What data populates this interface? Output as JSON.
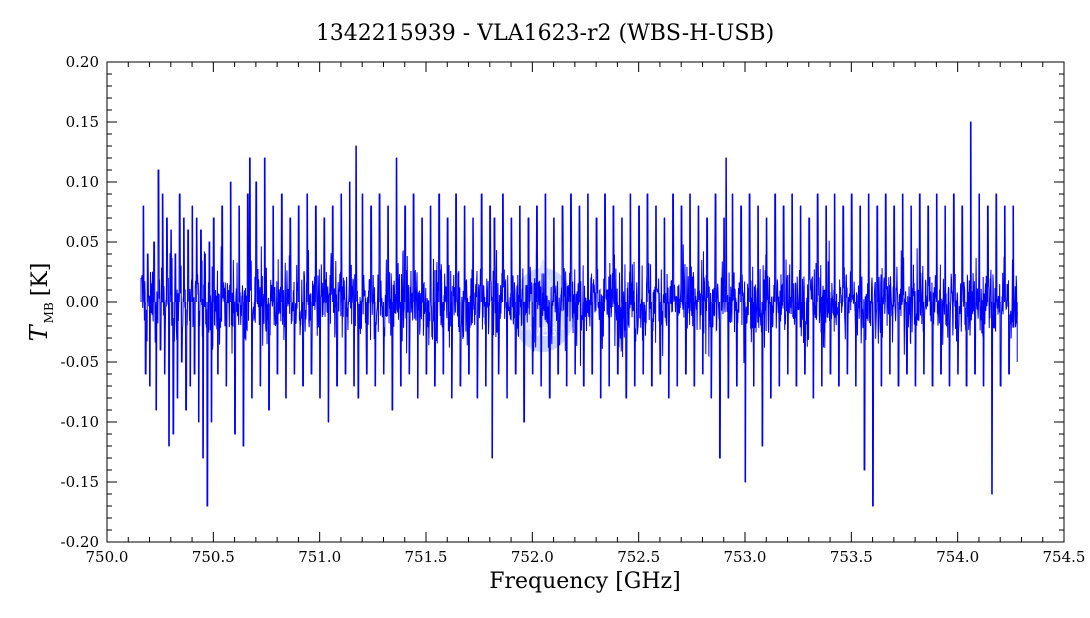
{
  "colors": {
    "series": "#0000ff",
    "axis": "#000000",
    "background": "#ffffff"
  },
  "chart_data": {
    "type": "line",
    "title": "1342215939 - VLA1623-r2 (WBS-H-USB)",
    "xlabel": "Frequency [GHz]",
    "ylabel": {
      "symbol": "T",
      "subscript": "MB",
      "unit": "[K]"
    },
    "xlim": [
      750.0,
      754.5
    ],
    "ylim": [
      -0.2,
      0.2
    ],
    "x_ticks": [
      "750.0",
      "750.5",
      "751.0",
      "751.5",
      "752.0",
      "752.5",
      "753.0",
      "753.5",
      "754.0",
      "754.5"
    ],
    "y_ticks": [
      "0.20",
      "0.15",
      "0.10",
      "0.05",
      "0.00",
      "-0.05",
      "-0.10",
      "-0.15",
      "-0.20"
    ],
    "grid": false,
    "watermark": "WBS",
    "series": [
      {
        "x_range": [
          750.16,
          754.28
        ],
        "points": [
          [
            750.16,
            0.02
          ],
          [
            750.17,
            0.08
          ],
          [
            750.18,
            -0.06
          ],
          [
            750.19,
            0.04
          ],
          [
            750.2,
            -0.07
          ],
          [
            750.22,
            0.05
          ],
          [
            750.23,
            -0.09
          ],
          [
            750.24,
            0.11
          ],
          [
            750.25,
            -0.04
          ],
          [
            750.26,
            0.09
          ],
          [
            750.27,
            -0.06
          ],
          [
            750.28,
            0.07
          ],
          [
            750.29,
            -0.12
          ],
          [
            750.3,
            0.06
          ],
          [
            750.31,
            -0.11
          ],
          [
            750.32,
            0.04
          ],
          [
            750.33,
            -0.08
          ],
          [
            750.34,
            0.09
          ],
          [
            750.35,
            -0.05
          ],
          [
            750.36,
            0.07
          ],
          [
            750.37,
            -0.09
          ],
          [
            750.38,
            0.06
          ],
          [
            750.39,
            -0.07
          ],
          [
            750.4,
            0.08
          ],
          [
            750.41,
            -0.06
          ],
          [
            750.42,
            0.07
          ],
          [
            750.43,
            -0.1
          ],
          [
            750.44,
            0.06
          ],
          [
            750.45,
            -0.13
          ],
          [
            750.46,
            0.04
          ],
          [
            750.47,
            -0.17
          ],
          [
            750.48,
            0.05
          ],
          [
            750.49,
            -0.1
          ],
          [
            750.5,
            0.07
          ],
          [
            750.52,
            -0.06
          ],
          [
            750.54,
            0.08
          ],
          [
            750.56,
            -0.07
          ],
          [
            750.58,
            0.1
          ],
          [
            750.6,
            -0.11
          ],
          [
            750.62,
            0.08
          ],
          [
            750.64,
            -0.12
          ],
          [
            750.66,
            0.09
          ],
          [
            750.67,
            0.12
          ],
          [
            750.68,
            -0.08
          ],
          [
            750.7,
            0.1
          ],
          [
            750.72,
            -0.07
          ],
          [
            750.74,
            0.12
          ],
          [
            750.76,
            -0.09
          ],
          [
            750.78,
            0.08
          ],
          [
            750.8,
            -0.06
          ],
          [
            750.82,
            0.09
          ],
          [
            750.84,
            -0.08
          ],
          [
            750.86,
            0.07
          ],
          [
            750.88,
            -0.06
          ],
          [
            750.9,
            0.08
          ],
          [
            750.92,
            -0.07
          ],
          [
            750.94,
            0.09
          ],
          [
            750.96,
            -0.06
          ],
          [
            750.98,
            0.08
          ],
          [
            751.0,
            -0.08
          ],
          [
            751.02,
            0.07
          ],
          [
            751.04,
            -0.1
          ],
          [
            751.06,
            0.08
          ],
          [
            751.08,
            -0.07
          ],
          [
            751.1,
            0.09
          ],
          [
            751.12,
            -0.06
          ],
          [
            751.14,
            0.1
          ],
          [
            751.16,
            -0.07
          ],
          [
            751.17,
            0.13
          ],
          [
            751.18,
            -0.08
          ],
          [
            751.2,
            0.09
          ],
          [
            751.22,
            -0.06
          ],
          [
            751.24,
            0.08
          ],
          [
            751.26,
            -0.07
          ],
          [
            751.28,
            0.09
          ],
          [
            751.3,
            -0.06
          ],
          [
            751.32,
            0.08
          ],
          [
            751.34,
            -0.09
          ],
          [
            751.36,
            0.12
          ],
          [
            751.38,
            -0.07
          ],
          [
            751.4,
            0.08
          ],
          [
            751.42,
            -0.06
          ],
          [
            751.44,
            0.09
          ],
          [
            751.46,
            -0.08
          ],
          [
            751.48,
            0.07
          ],
          [
            751.5,
            -0.06
          ],
          [
            751.52,
            0.08
          ],
          [
            751.54,
            -0.07
          ],
          [
            751.56,
            0.09
          ],
          [
            751.58,
            -0.06
          ],
          [
            751.6,
            0.07
          ],
          [
            751.62,
            -0.08
          ],
          [
            751.64,
            0.09
          ],
          [
            751.66,
            -0.07
          ],
          [
            751.68,
            0.08
          ],
          [
            751.7,
            -0.06
          ],
          [
            751.72,
            0.07
          ],
          [
            751.74,
            -0.08
          ],
          [
            751.76,
            0.09
          ],
          [
            751.78,
            -0.07
          ],
          [
            751.8,
            0.08
          ],
          [
            751.81,
            -0.13
          ],
          [
            751.82,
            0.07
          ],
          [
            751.84,
            -0.06
          ],
          [
            751.86,
            0.09
          ],
          [
            751.88,
            -0.08
          ],
          [
            751.9,
            0.07
          ],
          [
            751.92,
            -0.06
          ],
          [
            751.94,
            0.08
          ],
          [
            751.96,
            -0.1
          ],
          [
            751.98,
            0.07
          ],
          [
            752.0,
            -0.06
          ],
          [
            752.02,
            0.08
          ],
          [
            752.04,
            -0.07
          ],
          [
            752.06,
            0.09
          ],
          [
            752.08,
            -0.08
          ],
          [
            752.1,
            0.07
          ],
          [
            752.12,
            -0.06
          ],
          [
            752.14,
            0.08
          ],
          [
            752.16,
            -0.07
          ],
          [
            752.18,
            0.09
          ],
          [
            752.2,
            -0.06
          ],
          [
            752.22,
            0.08
          ],
          [
            752.24,
            -0.07
          ],
          [
            752.26,
            0.09
          ],
          [
            752.28,
            -0.06
          ],
          [
            752.3,
            0.07
          ],
          [
            752.32,
            -0.08
          ],
          [
            752.34,
            0.09
          ],
          [
            752.36,
            -0.07
          ],
          [
            752.38,
            0.08
          ],
          [
            752.4,
            -0.06
          ],
          [
            752.42,
            0.07
          ],
          [
            752.44,
            -0.08
          ],
          [
            752.46,
            0.09
          ],
          [
            752.48,
            -0.07
          ],
          [
            752.5,
            0.08
          ],
          [
            752.52,
            -0.06
          ],
          [
            752.54,
            0.09
          ],
          [
            752.56,
            -0.07
          ],
          [
            752.58,
            0.08
          ],
          [
            752.6,
            -0.06
          ],
          [
            752.62,
            0.07
          ],
          [
            752.64,
            -0.08
          ],
          [
            752.66,
            0.09
          ],
          [
            752.68,
            -0.07
          ],
          [
            752.7,
            0.08
          ],
          [
            752.72,
            -0.06
          ],
          [
            752.74,
            0.09
          ],
          [
            752.76,
            -0.07
          ],
          [
            752.78,
            0.08
          ],
          [
            752.8,
            -0.06
          ],
          [
            752.82,
            0.07
          ],
          [
            752.84,
            -0.08
          ],
          [
            752.86,
            0.09
          ],
          [
            752.88,
            -0.13
          ],
          [
            752.9,
            0.07
          ],
          [
            752.91,
            0.12
          ],
          [
            752.92,
            -0.08
          ],
          [
            752.94,
            0.09
          ],
          [
            752.96,
            -0.07
          ],
          [
            752.98,
            0.08
          ],
          [
            753.0,
            -0.15
          ],
          [
            753.02,
            0.09
          ],
          [
            753.04,
            -0.07
          ],
          [
            753.06,
            0.08
          ],
          [
            753.08,
            -0.12
          ],
          [
            753.1,
            0.07
          ],
          [
            753.12,
            -0.08
          ],
          [
            753.14,
            0.09
          ],
          [
            753.16,
            -0.07
          ],
          [
            753.18,
            0.08
          ],
          [
            753.2,
            -0.06
          ],
          [
            753.22,
            0.09
          ],
          [
            753.24,
            -0.07
          ],
          [
            753.26,
            0.08
          ],
          [
            753.28,
            -0.06
          ],
          [
            753.3,
            0.07
          ],
          [
            753.32,
            -0.08
          ],
          [
            753.34,
            0.09
          ],
          [
            753.36,
            -0.07
          ],
          [
            753.38,
            0.08
          ],
          [
            753.4,
            -0.06
          ],
          [
            753.42,
            0.09
          ],
          [
            753.44,
            -0.07
          ],
          [
            753.46,
            0.08
          ],
          [
            753.48,
            -0.06
          ],
          [
            753.5,
            0.09
          ],
          [
            753.52,
            -0.07
          ],
          [
            753.54,
            0.08
          ],
          [
            753.56,
            -0.14
          ],
          [
            753.58,
            0.09
          ],
          [
            753.6,
            -0.17
          ],
          [
            753.62,
            0.08
          ],
          [
            753.64,
            -0.07
          ],
          [
            753.66,
            0.09
          ],
          [
            753.68,
            -0.06
          ],
          [
            753.7,
            0.08
          ],
          [
            753.72,
            -0.07
          ],
          [
            753.74,
            0.09
          ],
          [
            753.76,
            -0.06
          ],
          [
            753.78,
            0.08
          ],
          [
            753.8,
            -0.07
          ],
          [
            753.82,
            0.09
          ],
          [
            753.84,
            -0.06
          ],
          [
            753.86,
            0.08
          ],
          [
            753.88,
            -0.07
          ],
          [
            753.9,
            0.09
          ],
          [
            753.92,
            -0.06
          ],
          [
            753.94,
            0.08
          ],
          [
            753.96,
            -0.07
          ],
          [
            753.98,
            0.09
          ],
          [
            754.0,
            -0.06
          ],
          [
            754.02,
            0.08
          ],
          [
            754.04,
            -0.07
          ],
          [
            754.06,
            0.15
          ],
          [
            754.08,
            -0.06
          ],
          [
            754.1,
            0.09
          ],
          [
            754.12,
            -0.07
          ],
          [
            754.14,
            0.08
          ],
          [
            754.16,
            -0.16
          ],
          [
            754.18,
            0.09
          ],
          [
            754.2,
            -0.07
          ],
          [
            754.22,
            0.08
          ],
          [
            754.24,
            -0.06
          ],
          [
            754.26,
            0.08
          ],
          [
            754.28,
            -0.05
          ]
        ]
      }
    ]
  }
}
